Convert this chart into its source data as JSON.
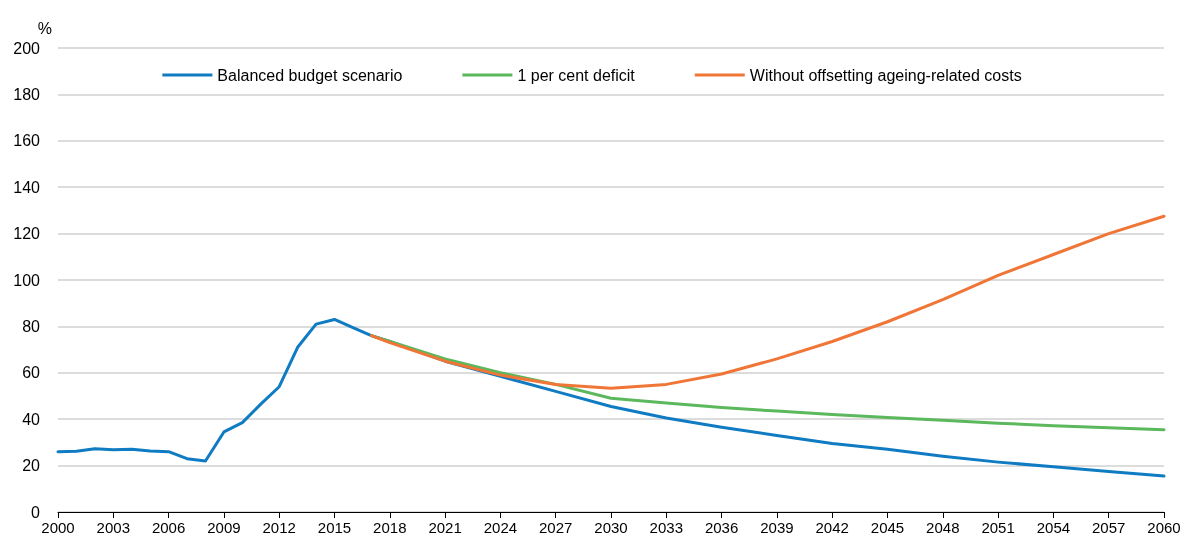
{
  "chart_data": {
    "type": "line",
    "ylabel": "%",
    "xlim": [
      2000,
      2060
    ],
    "xticks": [
      2000,
      2003,
      2006,
      2009,
      2012,
      2015,
      2018,
      2021,
      2024,
      2027,
      2030,
      2033,
      2036,
      2039,
      2042,
      2045,
      2048,
      2051,
      2054,
      2057,
      2060
    ],
    "ylim": [
      0,
      200
    ],
    "yticks": [
      0,
      20,
      40,
      60,
      80,
      100,
      120,
      140,
      160,
      180,
      200
    ],
    "grid": "y",
    "legend": "top",
    "marker": "none",
    "line_style": "solid",
    "series": [
      {
        "name": "Balanced budget scenario",
        "color": "#0f7bc3",
        "x": [
          2000,
          2001,
          2002,
          2003,
          2004,
          2005,
          2006,
          2007,
          2008,
          2009,
          2010,
          2011,
          2012,
          2013,
          2014,
          2015,
          2016,
          2017,
          2018,
          2021,
          2024,
          2027,
          2030,
          2033,
          2036,
          2039,
          2042,
          2045,
          2048,
          2051,
          2054,
          2057,
          2060
        ],
        "values": [
          26,
          26.2,
          27.3,
          26.8,
          27,
          26.3,
          26,
          23,
          22,
          34.5,
          38.5,
          46.5,
          54,
          71,
          81,
          83,
          79.5,
          76,
          73.5,
          65,
          58.5,
          52,
          45.5,
          40.5,
          36.5,
          33,
          29.5,
          27,
          24,
          21.5,
          19.5,
          17.5,
          15.5
        ]
      },
      {
        "name": "1 per cent deficit",
        "color": "#5cb85c",
        "x": [
          2017,
          2018,
          2021,
          2024,
          2027,
          2030,
          2033,
          2036,
          2039,
          2042,
          2045,
          2048,
          2051,
          2054,
          2057,
          2060
        ],
        "values": [
          76,
          73.5,
          66,
          60,
          55,
          49,
          47,
          45,
          43.5,
          42,
          40.7,
          39.5,
          38.3,
          37.2,
          36.3,
          35.5
        ]
      },
      {
        "name": "Without offsetting ageing-related costs",
        "color": "#f07637",
        "x": [
          2017,
          2018,
          2021,
          2024,
          2027,
          2030,
          2033,
          2036,
          2039,
          2042,
          2045,
          2048,
          2051,
          2054,
          2057,
          2060
        ],
        "values": [
          76,
          73,
          65,
          59,
          55,
          53.3,
          55,
          59.5,
          66,
          73.5,
          82,
          91.5,
          102,
          111,
          120,
          127.5
        ]
      }
    ]
  }
}
